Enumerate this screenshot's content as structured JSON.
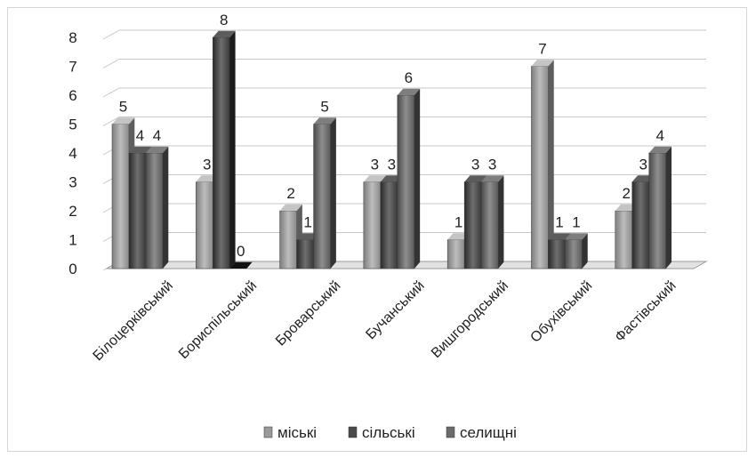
{
  "chart_data": {
    "type": "bar",
    "style": "3d-clustered-column",
    "categories": [
      "Білоцерківський",
      "Бориспільський",
      "Броварський",
      "Бучанський",
      "Вишгородський",
      "Обухівський",
      "Фастівський"
    ],
    "series": [
      {
        "name": "міські",
        "values": [
          5,
          3,
          2,
          3,
          1,
          7,
          2
        ],
        "color": "#9a9a9a"
      },
      {
        "name": "сільські",
        "values": [
          4,
          8,
          1,
          3,
          3,
          1,
          3
        ],
        "color": "#4a4a4a"
      },
      {
        "name": "селищні",
        "values": [
          4,
          0,
          5,
          6,
          3,
          1,
          4
        ],
        "color": "#6b6b6b"
      }
    ],
    "yticks": [
      0,
      1,
      2,
      3,
      4,
      5,
      6,
      7,
      8
    ],
    "ylim": [
      0,
      8
    ],
    "grid": true,
    "legend": "bottom",
    "data_labels": true
  }
}
